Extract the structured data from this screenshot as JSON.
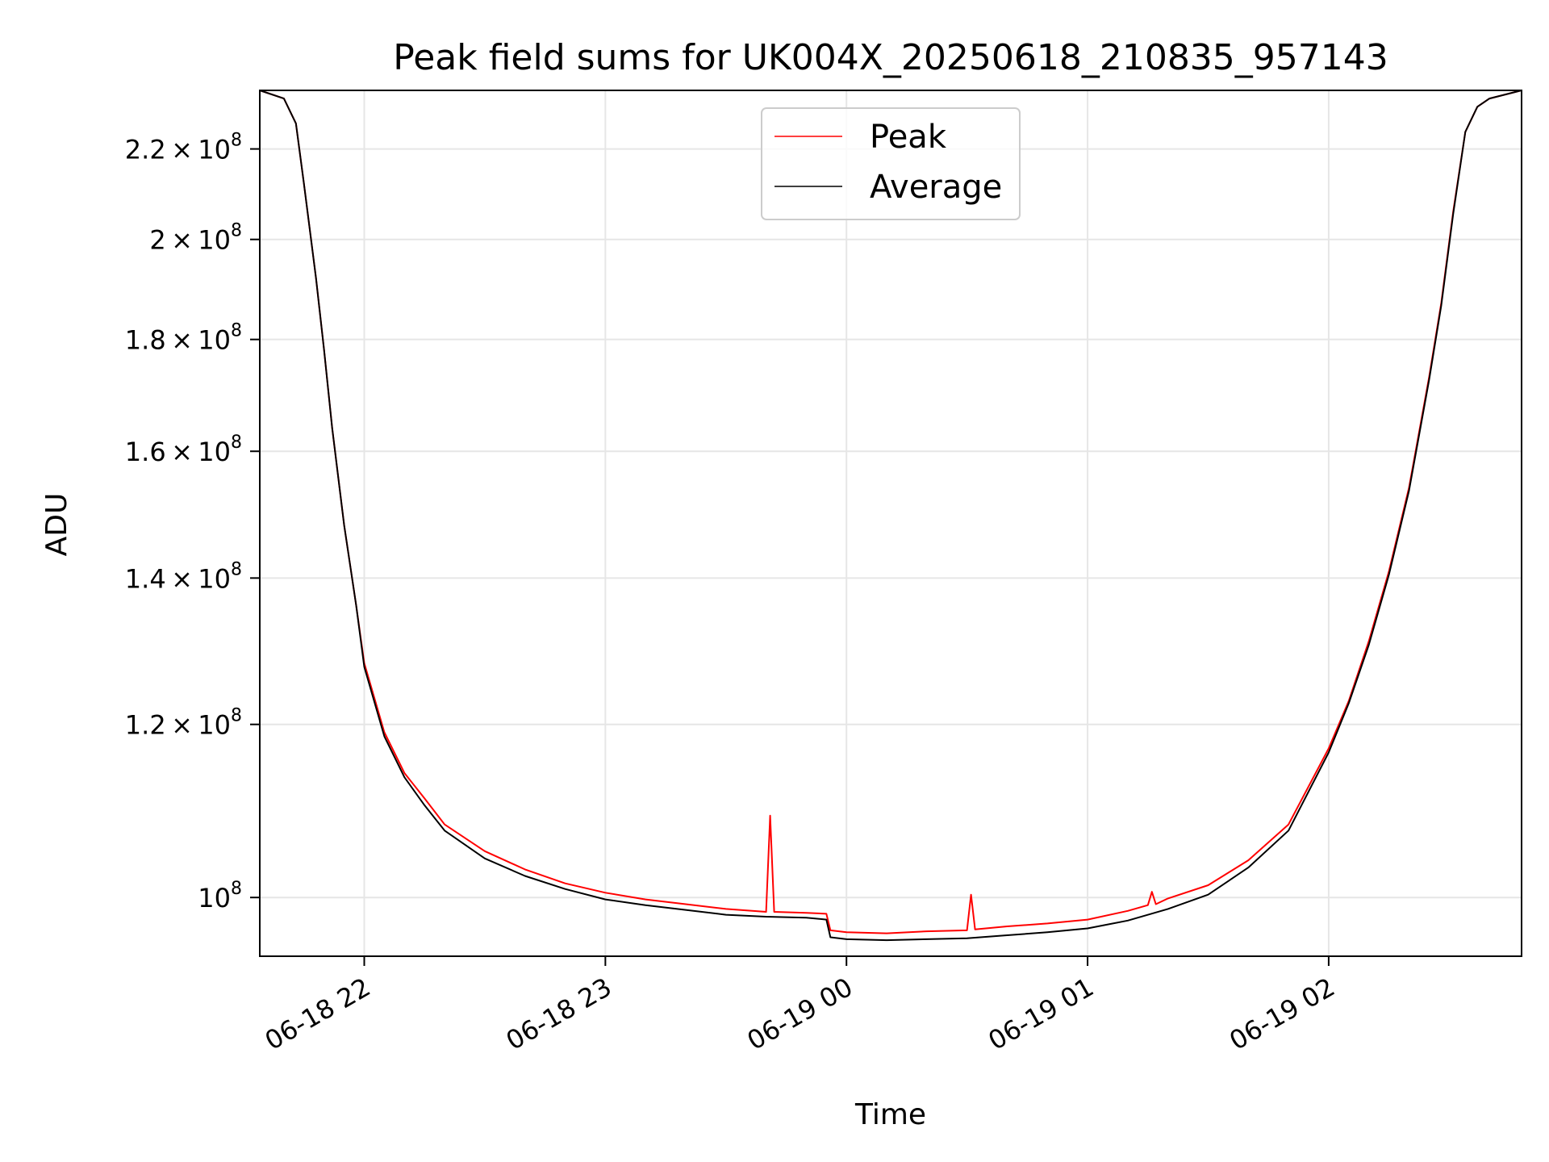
{
  "chart_data": {
    "type": "line",
    "title": "Peak field sums for UK004X_20250618_210835_957143",
    "xlabel": "Time",
    "ylabel": "ADU",
    "yscale": "log",
    "grid": true,
    "legend_position": "top-center",
    "x_range": [
      "2025-06-18 21:34",
      "2025-06-19 02:48"
    ],
    "ylim": [
      94000000,
      234000000
    ],
    "x_ticks": [
      {
        "value": "2025-06-18 22:00",
        "label": "06-18 22"
      },
      {
        "value": "2025-06-18 23:00",
        "label": "06-18 23"
      },
      {
        "value": "2025-06-19 00:00",
        "label": "06-19 00"
      },
      {
        "value": "2025-06-19 01:00",
        "label": "06-19 01"
      },
      {
        "value": "2025-06-19 02:00",
        "label": "06-19 02"
      }
    ],
    "y_ticks": [
      {
        "value": 100000000,
        "mantissa": "",
        "exponent": "8"
      },
      {
        "value": 120000000,
        "mantissa": "1.2",
        "exponent": "8"
      },
      {
        "value": 140000000,
        "mantissa": "1.4",
        "exponent": "8"
      },
      {
        "value": 160000000,
        "mantissa": "1.6",
        "exponent": "8"
      },
      {
        "value": 180000000,
        "mantissa": "1.8",
        "exponent": "8"
      },
      {
        "value": 200000000,
        "mantissa": "2",
        "exponent": "8"
      },
      {
        "value": 220000000,
        "mantissa": "2.2",
        "exponent": "8"
      }
    ],
    "series": [
      {
        "name": "Peak",
        "color": "#ff0000",
        "x": [
          "2025-06-18 21:34",
          "2025-06-18 21:40",
          "2025-06-18 21:43",
          "2025-06-18 21:45",
          "2025-06-18 21:48",
          "2025-06-18 21:50",
          "2025-06-18 21:52",
          "2025-06-18 21:55",
          "2025-06-18 21:58",
          "2025-06-18 22:00",
          "2025-06-18 22:05",
          "2025-06-18 22:10",
          "2025-06-18 22:15",
          "2025-06-18 22:20",
          "2025-06-18 22:30",
          "2025-06-18 22:40",
          "2025-06-18 22:50",
          "2025-06-18 23:00",
          "2025-06-18 23:10",
          "2025-06-18 23:20",
          "2025-06-18 23:30",
          "2025-06-18 23:40",
          "2025-06-18 23:41",
          "2025-06-18 23:42",
          "2025-06-18 23:50",
          "2025-06-18 23:55",
          "2025-06-18 23:56",
          "2025-06-19 00:00",
          "2025-06-19 00:10",
          "2025-06-19 00:20",
          "2025-06-19 00:30",
          "2025-06-19 00:31",
          "2025-06-19 00:32",
          "2025-06-19 00:40",
          "2025-06-19 00:50",
          "2025-06-19 01:00",
          "2025-06-19 01:10",
          "2025-06-19 01:15",
          "2025-06-19 01:16",
          "2025-06-19 01:17",
          "2025-06-19 01:20",
          "2025-06-19 01:30",
          "2025-06-19 01:40",
          "2025-06-19 01:50",
          "2025-06-19 02:00",
          "2025-06-19 02:05",
          "2025-06-19 02:10",
          "2025-06-19 02:15",
          "2025-06-19 02:20",
          "2025-06-19 02:25",
          "2025-06-19 02:28",
          "2025-06-19 02:31",
          "2025-06-19 02:34",
          "2025-06-19 02:37",
          "2025-06-19 02:40",
          "2025-06-19 02:48"
        ],
        "y": [
          234000000,
          232000000,
          226000000,
          212000000,
          192000000,
          178000000,
          164000000,
          148000000,
          136000000,
          128000000,
          119000000,
          114000000,
          111000000,
          108000000,
          105000000,
          103000000,
          101500000,
          100500000,
          99800000,
          99300000,
          98800000,
          98500000,
          109000000,
          98500000,
          98400000,
          98300000,
          96600000,
          96400000,
          96300000,
          96500000,
          96600000,
          100300000,
          96700000,
          97000000,
          97300000,
          97700000,
          98600000,
          99200000,
          100600000,
          99300000,
          99900000,
          101300000,
          104000000,
          108000000,
          117000000,
          123000000,
          131000000,
          141000000,
          154000000,
          173000000,
          187000000,
          206000000,
          224000000,
          230000000,
          232000000,
          234000000
        ]
      },
      {
        "name": "Average",
        "color": "#000000",
        "x": [
          "2025-06-18 21:34",
          "2025-06-18 21:40",
          "2025-06-18 21:43",
          "2025-06-18 21:45",
          "2025-06-18 21:48",
          "2025-06-18 21:50",
          "2025-06-18 21:52",
          "2025-06-18 21:55",
          "2025-06-18 21:58",
          "2025-06-18 22:00",
          "2025-06-18 22:05",
          "2025-06-18 22:10",
          "2025-06-18 22:15",
          "2025-06-18 22:20",
          "2025-06-18 22:30",
          "2025-06-18 22:40",
          "2025-06-18 22:50",
          "2025-06-18 23:00",
          "2025-06-18 23:10",
          "2025-06-18 23:20",
          "2025-06-18 23:30",
          "2025-06-18 23:40",
          "2025-06-18 23:50",
          "2025-06-18 23:55",
          "2025-06-18 23:56",
          "2025-06-19 00:00",
          "2025-06-19 00:10",
          "2025-06-19 00:20",
          "2025-06-19 00:30",
          "2025-06-19 00:40",
          "2025-06-19 00:50",
          "2025-06-19 01:00",
          "2025-06-19 01:10",
          "2025-06-19 01:20",
          "2025-06-19 01:30",
          "2025-06-19 01:40",
          "2025-06-19 01:50",
          "2025-06-19 02:00",
          "2025-06-19 02:05",
          "2025-06-19 02:10",
          "2025-06-19 02:15",
          "2025-06-19 02:20",
          "2025-06-19 02:25",
          "2025-06-19 02:28",
          "2025-06-19 02:31",
          "2025-06-19 02:34",
          "2025-06-19 02:37",
          "2025-06-19 02:40",
          "2025-06-19 02:48"
        ],
        "y": [
          234000000,
          232000000,
          226000000,
          212000000,
          192000000,
          178000000,
          164000000,
          148000000,
          136000000,
          127500000,
          118500000,
          113500000,
          110200000,
          107300000,
          104200000,
          102300000,
          100900000,
          99800000,
          99200000,
          98700000,
          98200000,
          98000000,
          97900000,
          97700000,
          95900000,
          95700000,
          95600000,
          95700000,
          95800000,
          96100000,
          96400000,
          96800000,
          97600000,
          98800000,
          100300000,
          103200000,
          107300000,
          116500000,
          122700000,
          130500000,
          140500000,
          153500000,
          172500000,
          186500000,
          205500000,
          224000000,
          230000000,
          232000000,
          234000000
        ]
      }
    ]
  }
}
